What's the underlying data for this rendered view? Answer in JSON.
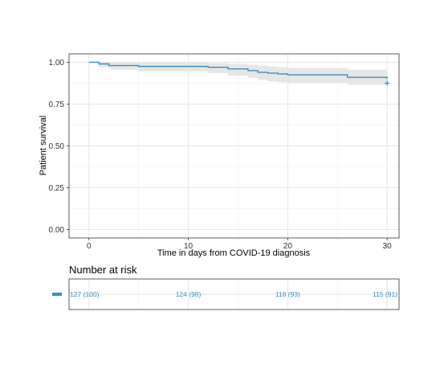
{
  "chart_data": {
    "type": "line",
    "xlabel": "Time in days from COVID-19 diagnosis",
    "ylabel": "Patient survival",
    "xlim": [
      -2,
      31.2
    ],
    "ylim": [
      -0.05,
      1.05
    ],
    "x_ticks": [
      0,
      10,
      20,
      30
    ],
    "y_ticks": [
      0.0,
      0.25,
      0.5,
      0.75,
      1.0
    ],
    "y_tick_labels": [
      "0.00",
      "0.25",
      "0.50",
      "0.75",
      "1.00"
    ],
    "grid": true,
    "series": [
      {
        "color": "#3a8fbf",
        "ci_color": "#e6e6e6",
        "x": [
          0,
          1,
          2,
          5,
          12,
          14,
          16,
          17,
          18,
          19,
          20,
          26,
          30
        ],
        "y": [
          1.0,
          0.99,
          0.98,
          0.975,
          0.97,
          0.96,
          0.95,
          0.94,
          0.935,
          0.93,
          0.925,
          0.91,
          0.9
        ],
        "lower": [
          1.0,
          0.97,
          0.955,
          0.945,
          0.935,
          0.92,
          0.905,
          0.895,
          0.885,
          0.88,
          0.875,
          0.865,
          0.855
        ],
        "upper": [
          1.0,
          1.0,
          1.0,
          1.0,
          0.995,
          0.99,
          0.985,
          0.98,
          0.975,
          0.97,
          0.965,
          0.955,
          0.95
        ],
        "censor": {
          "x": 30,
          "y": 0.875
        }
      }
    ],
    "risk_table": {
      "title": "Number at risk",
      "color": "#3a8fbf",
      "times": [
        0,
        10,
        20,
        30
      ],
      "labels": [
        "127 (100)",
        "124 (98)",
        "118 (93)",
        "115 (91)"
      ]
    }
  }
}
